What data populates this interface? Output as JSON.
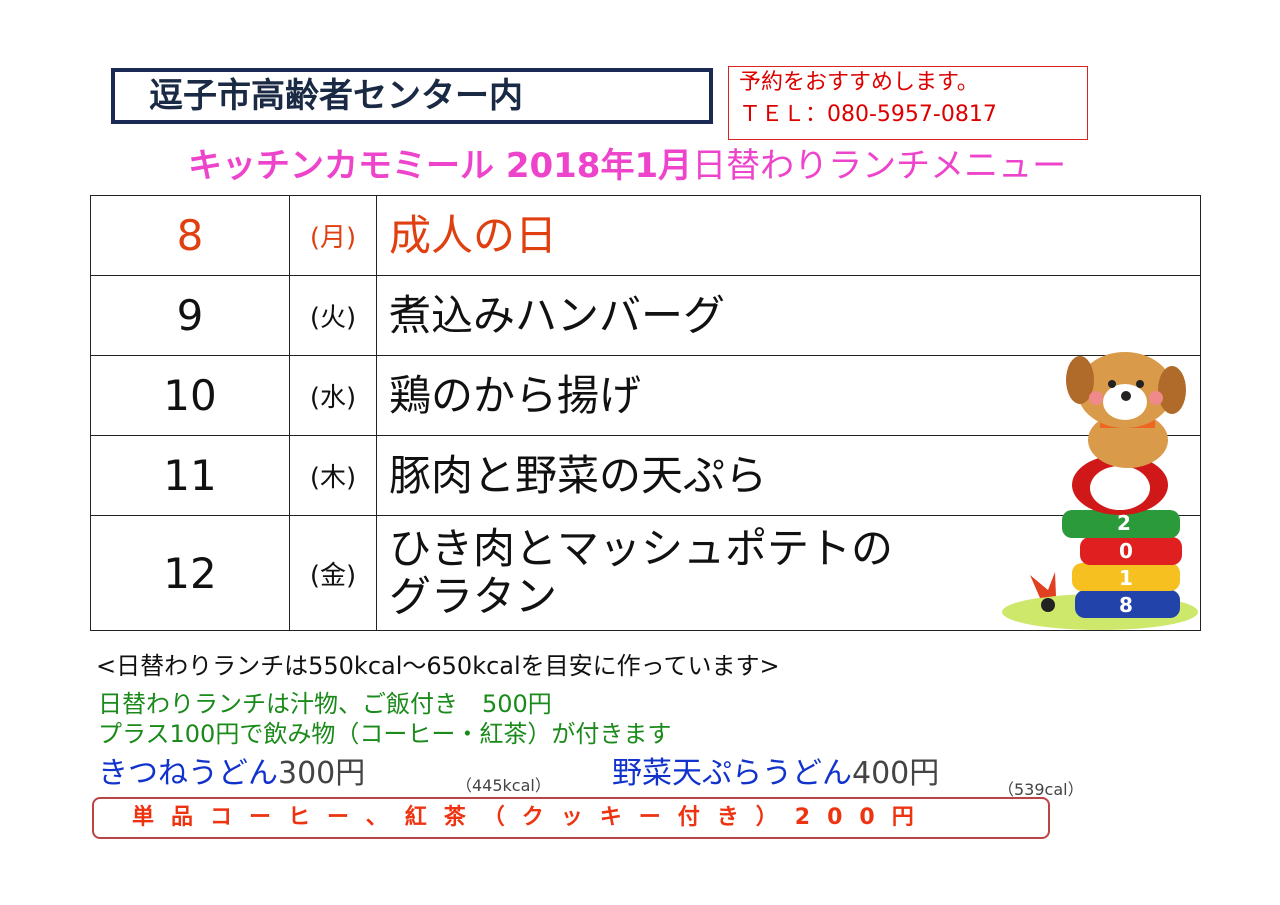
{
  "header": {
    "venue": "逗子市高齢者センター内",
    "reserve_line1": "予約をおすすめします。",
    "reserve_line2": "ＴＥＬ：080-5957-0817"
  },
  "title": {
    "shop": "キッチンカモミール 2018年1月",
    "menu": "日替わりランチメニュー"
  },
  "menu": [
    {
      "day": "8",
      "weekday": "(月)",
      "dish": "成人の日",
      "holiday": true
    },
    {
      "day": "9",
      "weekday": "(火)",
      "dish": "煮込みハンバーグ"
    },
    {
      "day": "10",
      "weekday": "(水)",
      "dish": "鶏のから揚げ"
    },
    {
      "day": "11",
      "weekday": "(木)",
      "dish": "豚肉と野菜の天ぷら"
    },
    {
      "day": "12",
      "weekday": "(金)",
      "dish": "ひき肉とマッシュポテトの",
      "dish2": "グラタン"
    }
  ],
  "notes": {
    "calorie": "<日替わりランチは550kcal～650kcalを目安に作っています>",
    "lunch_price": "日替わりランチは汁物、ご飯付き　500円",
    "drink": "プラス100円で飲み物（コーヒー・紅茶）が付きます",
    "udon1_name": "きつねうどん",
    "udon1_price": "300円",
    "udon1_cal": "（445kcal）",
    "udon2_name": "野菜天ぷらうどん",
    "udon2_price": "400円",
    "udon2_cal": "（539cal）",
    "single": "単品コーヒー、紅茶（クッキー付き）200円"
  },
  "illustration": {
    "icon": "dog-on-daruma-icon",
    "digits": [
      "2",
      "0",
      "1",
      "8"
    ]
  },
  "colors": {
    "pink": "#ee44cc",
    "red": "#e04010",
    "green": "#1a8a1a",
    "blue": "#1133cc"
  }
}
